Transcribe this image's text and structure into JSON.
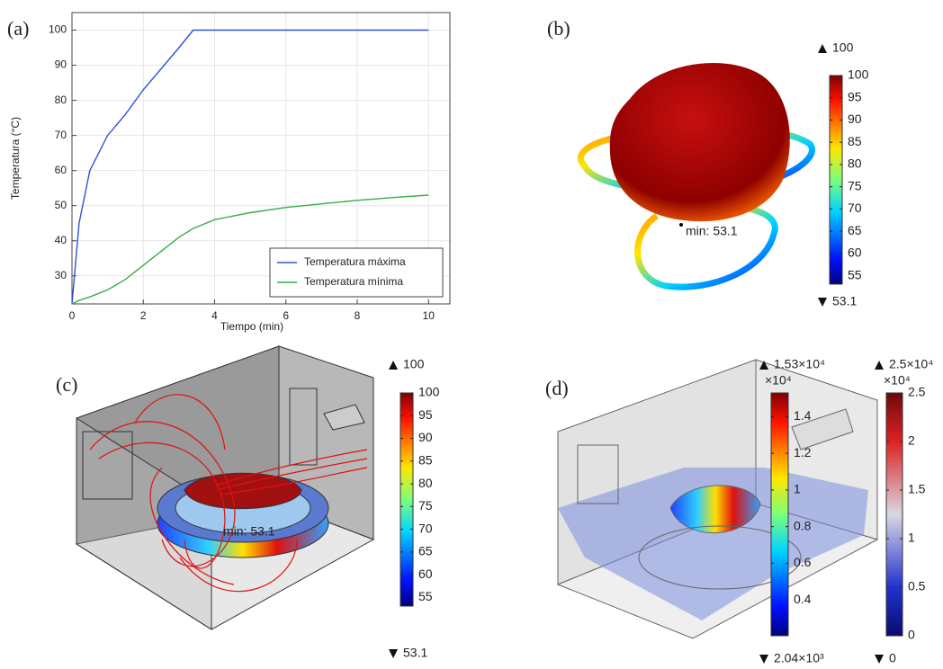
{
  "panel_labels": [
    "(a)",
    "(b)",
    "(c)",
    "(d)"
  ],
  "chart_data": [
    {
      "type": "line",
      "x_label": "Tiempo (min)",
      "y_label": "Temperatura (°C)",
      "x": [
        0,
        0.2,
        0.5,
        1,
        1.5,
        2,
        2.5,
        3,
        3.4,
        4,
        5,
        6,
        7,
        8,
        9,
        10
      ],
      "series": [
        {
          "name": "Temperatura máxima",
          "color": "#2f52d8",
          "values": [
            22,
            45,
            60,
            70,
            76,
            83,
            89,
            95,
            100,
            100,
            100,
            100,
            100,
            100,
            100,
            100
          ]
        },
        {
          "name": "Temperatura mínima",
          "color": "#33b046",
          "values": [
            22,
            23,
            24,
            26,
            29,
            33,
            37,
            41,
            43.5,
            46,
            48,
            49.5,
            50.5,
            51.5,
            52.3,
            53
          ]
        }
      ],
      "xlim": [
        0,
        10.6
      ],
      "xticks": [
        0,
        2,
        4,
        6,
        8,
        10
      ],
      "ylim": [
        22,
        105
      ],
      "yticks": [
        30,
        40,
        50,
        60,
        70,
        80,
        90,
        100
      ],
      "grid": true,
      "legend": "lower right"
    },
    {
      "type": "colorbar",
      "colormap": "jet",
      "max": 100,
      "min": 53.1,
      "annotation": "min: 53.1",
      "ylim": [
        53.1,
        100
      ],
      "yticks": [
        55,
        60,
        65,
        70,
        75,
        80,
        85,
        90,
        95,
        100
      ]
    },
    {
      "type": "colorbar",
      "colormap": "jet",
      "max": 100,
      "min": 53.1,
      "annotation": "min: 53.1",
      "ylim": [
        53.1,
        100
      ],
      "yticks": [
        55,
        60,
        65,
        70,
        75,
        80,
        85,
        90,
        95,
        100
      ]
    },
    {
      "type": "colorbar",
      "colormap": "jet",
      "max": {
        "value": 15300,
        "label": "1.53×10⁴"
      },
      "min": {
        "value": 2040,
        "label": "2.04×10³"
      },
      "scale_label": "×10⁴",
      "ylim": [
        0.204,
        1.53
      ],
      "yticks": [
        0.4,
        0.6,
        0.8,
        1,
        1.2,
        1.4
      ]
    },
    {
      "type": "colorbar",
      "colormap": "coolwarm",
      "max": {
        "value": 25000,
        "label": "2.5×10⁴"
      },
      "min": 0,
      "scale_label": "×10⁴",
      "ylim": [
        0,
        2.5
      ],
      "yticks": [
        0,
        0.5,
        1,
        1.5,
        2,
        2.5
      ]
    }
  ]
}
